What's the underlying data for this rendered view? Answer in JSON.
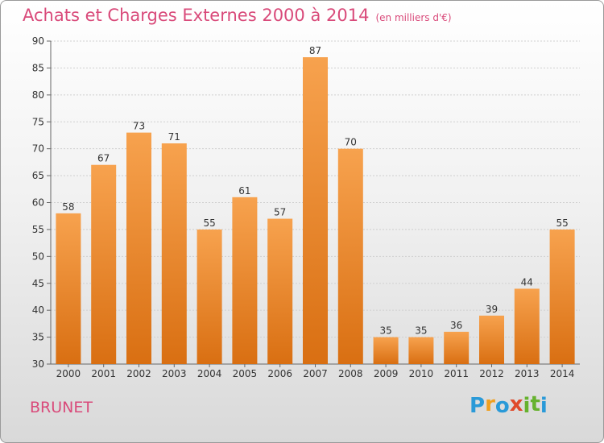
{
  "title": "Achats et Charges Externes 2000 à 2014",
  "unit_note": "(en milliers d'€)",
  "commune": "BRUNET",
  "logo": {
    "text": "Proxiti",
    "letters": [
      "P",
      "r",
      "o",
      "x",
      "i",
      "t",
      "i"
    ],
    "colors": [
      "#2a9ad8",
      "#f0a020",
      "#2a9ad8",
      "#e04a2a",
      "#66b22e",
      "#66b22e",
      "#2a9ad8"
    ]
  },
  "chart_data": {
    "type": "bar",
    "title": "Achats et Charges Externes 2000 à 2014",
    "subtitle": "(en milliers d'€)",
    "categories": [
      "2000",
      "2001",
      "2002",
      "2003",
      "2004",
      "2005",
      "2006",
      "2007",
      "2008",
      "2009",
      "2010",
      "2011",
      "2012",
      "2013",
      "2014"
    ],
    "values": [
      58,
      67,
      73,
      71,
      55,
      61,
      57,
      87,
      70,
      35,
      35,
      36,
      39,
      44,
      55
    ],
    "ylim": [
      30,
      90
    ],
    "yticks": [
      30,
      35,
      40,
      45,
      50,
      55,
      60,
      65,
      70,
      75,
      80,
      85,
      90
    ],
    "xlabel": "",
    "ylabel": "",
    "grid": true,
    "legend": "none",
    "bar_color": "#f08a2a"
  }
}
